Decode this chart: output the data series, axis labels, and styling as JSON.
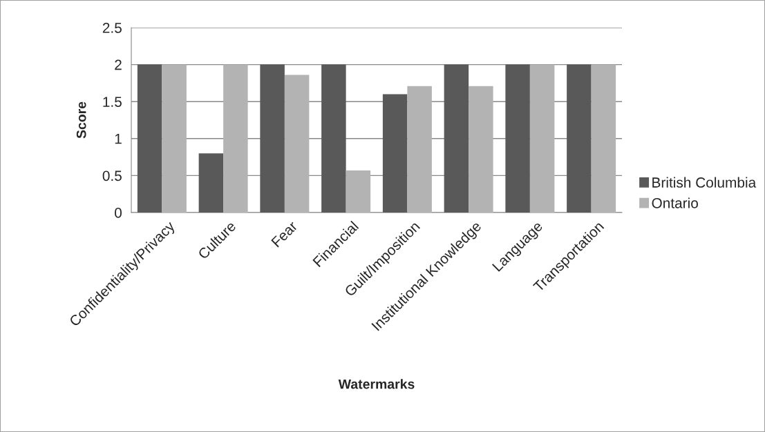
{
  "chart_data": {
    "type": "bar",
    "xlabel": "Watermarks",
    "ylabel": "Score",
    "categories": [
      "Confidentiality/Privacy",
      "Culture",
      "Fear",
      "Financial",
      "Guilt/Imposition",
      "Institutional Knowledge",
      "Language",
      "Transportation"
    ],
    "series": [
      {
        "name": "British Columbia",
        "color": "#595959",
        "values": [
          2,
          0.8,
          2,
          2,
          1.6,
          2,
          2,
          2
        ]
      },
      {
        "name": "Ontario",
        "color": "#b3b3b3",
        "values": [
          2,
          2,
          1.86,
          0.57,
          1.71,
          1.71,
          2,
          2
        ]
      }
    ],
    "ylim": [
      0,
      2.5
    ],
    "yticks": [
      0,
      0.5,
      1,
      1.5,
      2,
      2.5
    ],
    "grid": "y",
    "legend": "right"
  }
}
